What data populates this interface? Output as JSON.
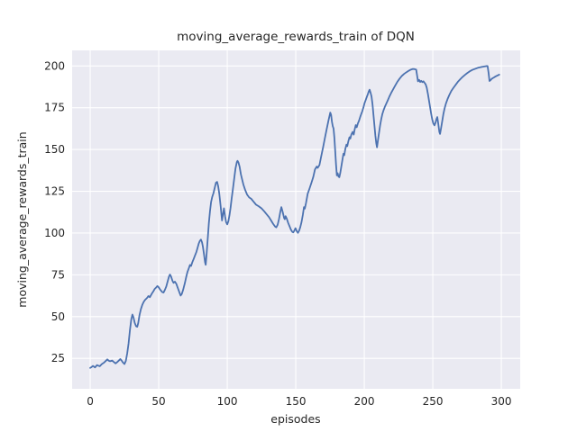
{
  "figure": {
    "background": "#ffffff",
    "axes_background": "#eaeaf2",
    "grid_color": "#ffffff",
    "text_color": "#262626",
    "line_color": "#4c72b0"
  },
  "chart_data": {
    "type": "line",
    "title": "moving_average_rewards_train of DQN",
    "xlabel": "episodes",
    "ylabel": "moving_average_rewards_train",
    "x_ticks": [
      0,
      50,
      100,
      150,
      200,
      250,
      300
    ],
    "y_ticks": [
      25,
      50,
      75,
      100,
      125,
      150,
      175,
      200
    ],
    "xlim": [
      -13.2,
      313.8
    ],
    "ylim": [
      6.8,
      209.3
    ],
    "grid": true,
    "legend": "none",
    "series": [
      {
        "name": "moving_average_rewards_train",
        "color": "#4c72b0",
        "points": [
          [
            0,
            19.3
          ],
          [
            1,
            19.8
          ],
          [
            2,
            20.5
          ],
          [
            3.5,
            19.6
          ],
          [
            5,
            21.0
          ],
          [
            6,
            20.6
          ],
          [
            7,
            20.3
          ],
          [
            8.5,
            21.6
          ],
          [
            10,
            22.4
          ],
          [
            11,
            23.2
          ],
          [
            12.5,
            24.4
          ],
          [
            13.5,
            23.6
          ],
          [
            14.5,
            23.3
          ],
          [
            16,
            23.7
          ],
          [
            17,
            23.0
          ],
          [
            18.5,
            22.0
          ],
          [
            19.5,
            22.6
          ],
          [
            20.5,
            23.4
          ],
          [
            22,
            24.6
          ],
          [
            23,
            23.6
          ],
          [
            23.8,
            22.6
          ],
          [
            25,
            21.6
          ],
          [
            26,
            23.5
          ],
          [
            27,
            28.0
          ],
          [
            28,
            34.0
          ],
          [
            29,
            42.0
          ],
          [
            30,
            48.5
          ],
          [
            30.8,
            51.2
          ],
          [
            31.5,
            49.8
          ],
          [
            32.5,
            46.2
          ],
          [
            33.5,
            44.2
          ],
          [
            34.3,
            43.9
          ],
          [
            35,
            46.0
          ],
          [
            36,
            51.0
          ],
          [
            37,
            54.5
          ],
          [
            38,
            57.0
          ],
          [
            39,
            58.8
          ],
          [
            40,
            60.0
          ],
          [
            41.5,
            61.2
          ],
          [
            42.5,
            62.3
          ],
          [
            43.5,
            61.6
          ],
          [
            45,
            63.8
          ],
          [
            46,
            65.0
          ],
          [
            47,
            66.5
          ],
          [
            48,
            67.3
          ],
          [
            49,
            68.3
          ],
          [
            50,
            67.5
          ],
          [
            51,
            66.2
          ],
          [
            52.5,
            64.7
          ],
          [
            53.5,
            64.4
          ],
          [
            54.5,
            66.0
          ],
          [
            55.5,
            68.0
          ],
          [
            56.5,
            71.0
          ],
          [
            57.5,
            74.0
          ],
          [
            58.2,
            75.2
          ],
          [
            59,
            74.0
          ],
          [
            60,
            71.5
          ],
          [
            60.8,
            70.2
          ],
          [
            61.8,
            70.9
          ],
          [
            62.8,
            69.7
          ],
          [
            63.8,
            67.4
          ],
          [
            65,
            64.7
          ],
          [
            66,
            62.6
          ],
          [
            66.8,
            63.5
          ],
          [
            67.8,
            66.0
          ],
          [
            69,
            69.8
          ],
          [
            70,
            73.5
          ],
          [
            71,
            76.8
          ],
          [
            72,
            79.0
          ],
          [
            72.8,
            80.9
          ],
          [
            73.6,
            80.3
          ],
          [
            74.5,
            82.5
          ],
          [
            75.5,
            84.5
          ],
          [
            76.5,
            86.6
          ],
          [
            77.5,
            88.7
          ],
          [
            78.3,
            91.0
          ],
          [
            79.2,
            93.7
          ],
          [
            80,
            95.3
          ],
          [
            80.8,
            96.1
          ],
          [
            81.6,
            94.5
          ],
          [
            82.3,
            91.5
          ],
          [
            83,
            87.5
          ],
          [
            83.8,
            82.5
          ],
          [
            84.3,
            81.0
          ],
          [
            85,
            88.0
          ],
          [
            85.8,
            97.0
          ],
          [
            86.6,
            106.0
          ],
          [
            87.4,
            113.0
          ],
          [
            88.2,
            118.5
          ],
          [
            89,
            121.5
          ],
          [
            90,
            124.0
          ],
          [
            91,
            127.5
          ],
          [
            91.8,
            130.2
          ],
          [
            92.6,
            130.6
          ],
          [
            93.4,
            128.0
          ],
          [
            94.2,
            123.5
          ],
          [
            95.2,
            116.0
          ],
          [
            96.2,
            107.5
          ],
          [
            97,
            111.8
          ],
          [
            97.6,
            114.8
          ],
          [
            98.4,
            110.0
          ],
          [
            99.2,
            106.5
          ],
          [
            100,
            105.2
          ],
          [
            100.8,
            107.0
          ],
          [
            101.6,
            110.5
          ],
          [
            102.4,
            115.0
          ],
          [
            103.2,
            120.5
          ],
          [
            104,
            125.5
          ],
          [
            105,
            132.0
          ],
          [
            106,
            138.5
          ],
          [
            107,
            142.5
          ],
          [
            107.5,
            143.2
          ],
          [
            108.2,
            142.2
          ],
          [
            109,
            139.8
          ],
          [
            110,
            135.0
          ],
          [
            110.8,
            132.3
          ],
          [
            111.8,
            129.0
          ],
          [
            113,
            126.0
          ],
          [
            114.5,
            123.0
          ],
          [
            116,
            121.3
          ],
          [
            117.5,
            120.5
          ],
          [
            119,
            119.0
          ],
          [
            121,
            117.0
          ],
          [
            123,
            116.0
          ],
          [
            125,
            114.8
          ],
          [
            127,
            113.0
          ],
          [
            129,
            111.0
          ],
          [
            130.5,
            109.5
          ],
          [
            132,
            107.5
          ],
          [
            133.5,
            105.5
          ],
          [
            135,
            103.8
          ],
          [
            135.8,
            103.4
          ],
          [
            136.8,
            105.0
          ],
          [
            137.8,
            108.5
          ],
          [
            138.8,
            113.0
          ],
          [
            139.5,
            115.5
          ],
          [
            140.5,
            112.5
          ],
          [
            141.5,
            109.0
          ],
          [
            142,
            108.3
          ],
          [
            142.6,
            110.1
          ],
          [
            143.5,
            108.5
          ],
          [
            144.5,
            106.0
          ],
          [
            145.5,
            104.0
          ],
          [
            146.5,
            102.0
          ],
          [
            147.5,
            100.7
          ],
          [
            148.2,
            100.4
          ],
          [
            149,
            101.5
          ],
          [
            149.8,
            102.9
          ],
          [
            150.8,
            101.0
          ],
          [
            151.6,
            100.1
          ],
          [
            152.5,
            101.5
          ],
          [
            153.3,
            103.5
          ],
          [
            154.2,
            106.5
          ],
          [
            155.2,
            111.0
          ],
          [
            156,
            115.5
          ],
          [
            156.6,
            114.6
          ],
          [
            157.5,
            118.0
          ],
          [
            158.7,
            123.5
          ],
          [
            160,
            126.5
          ],
          [
            161.5,
            130.2
          ],
          [
            162.8,
            133.6
          ],
          [
            164,
            138.0
          ],
          [
            165.3,
            139.8
          ],
          [
            166,
            139.0
          ],
          [
            167.3,
            140.7
          ],
          [
            168.6,
            146.0
          ],
          [
            170,
            151.5
          ],
          [
            171.3,
            157.0
          ],
          [
            172.6,
            162.3
          ],
          [
            174,
            167.8
          ],
          [
            175.2,
            172.1
          ],
          [
            175.8,
            170.7
          ],
          [
            176.4,
            166.7
          ],
          [
            177,
            164.0
          ],
          [
            177.6,
            162.5
          ],
          [
            178.2,
            157.0
          ],
          [
            178.8,
            149.0
          ],
          [
            179.4,
            141.0
          ],
          [
            180,
            134.5
          ],
          [
            180.6,
            135.8
          ],
          [
            181.2,
            133.8
          ],
          [
            181.8,
            133.4
          ],
          [
            182.5,
            136.0
          ],
          [
            183.2,
            139.5
          ],
          [
            184,
            143.5
          ],
          [
            184.8,
            147.5
          ],
          [
            185.4,
            146.6
          ],
          [
            186.2,
            150.5
          ],
          [
            187,
            152.9
          ],
          [
            187.6,
            152.0
          ],
          [
            188.4,
            155.0
          ],
          [
            189.2,
            157.3
          ],
          [
            189.8,
            156.5
          ],
          [
            190.6,
            159.0
          ],
          [
            191.5,
            160.5
          ],
          [
            192.3,
            158.9
          ],
          [
            193,
            162.0
          ],
          [
            193.8,
            164.6
          ],
          [
            194.5,
            163.3
          ],
          [
            195.3,
            165.5
          ],
          [
            196.2,
            167.3
          ],
          [
            197,
            169.4
          ],
          [
            197.8,
            171.2
          ],
          [
            198.6,
            173.0
          ],
          [
            199.4,
            175.2
          ],
          [
            200.2,
            177.7
          ],
          [
            201,
            179.5
          ],
          [
            201.8,
            181.3
          ],
          [
            202.6,
            183.1
          ],
          [
            203.3,
            184.8
          ],
          [
            203.9,
            185.8
          ],
          [
            204.6,
            184.0
          ],
          [
            205.3,
            181.7
          ],
          [
            206,
            177.2
          ],
          [
            206.7,
            170.9
          ],
          [
            207.4,
            164.6
          ],
          [
            208.1,
            158.3
          ],
          [
            208.8,
            153.5
          ],
          [
            209.3,
            151.3
          ],
          [
            210,
            155.6
          ],
          [
            210.8,
            160.1
          ],
          [
            211.6,
            164.6
          ],
          [
            212.4,
            168.2
          ],
          [
            213.2,
            171.2
          ],
          [
            214,
            173.3
          ],
          [
            215,
            175.5
          ],
          [
            216,
            177.3
          ],
          [
            217.2,
            179.5
          ],
          [
            218.4,
            181.8
          ],
          [
            219.6,
            183.8
          ],
          [
            221,
            185.9
          ],
          [
            222.4,
            188.0
          ],
          [
            224,
            190.3
          ],
          [
            225.7,
            192.3
          ],
          [
            227.3,
            193.9
          ],
          [
            229,
            195.2
          ],
          [
            230.7,
            196.2
          ],
          [
            232.4,
            197.1
          ],
          [
            234,
            197.8
          ],
          [
            235.5,
            198.2
          ],
          [
            236.7,
            198.1
          ],
          [
            237.9,
            197.8
          ],
          [
            238.6,
            194.0
          ],
          [
            239.2,
            190.8
          ],
          [
            240,
            191.7
          ],
          [
            240.8,
            190.4
          ],
          [
            241.6,
            191.1
          ],
          [
            242.4,
            190.3
          ],
          [
            243.2,
            190.8
          ],
          [
            244,
            189.9
          ],
          [
            244.8,
            189.0
          ],
          [
            245.6,
            187.0
          ],
          [
            246.4,
            183.5
          ],
          [
            247.2,
            179.5
          ],
          [
            248,
            175.5
          ],
          [
            248.8,
            171.5
          ],
          [
            249.6,
            168.0
          ],
          [
            250.4,
            165.6
          ],
          [
            251.2,
            164.4
          ],
          [
            252,
            166.0
          ],
          [
            252.7,
            168.3
          ],
          [
            253.3,
            169.4
          ],
          [
            254,
            165.5
          ],
          [
            254.8,
            160.5
          ],
          [
            255.3,
            159.3
          ],
          [
            256,
            162.5
          ],
          [
            256.8,
            166.5
          ],
          [
            257.7,
            171.0
          ],
          [
            258.6,
            174.5
          ],
          [
            259.6,
            177.5
          ],
          [
            260.7,
            180.0
          ],
          [
            262,
            182.5
          ],
          [
            263.5,
            185.0
          ],
          [
            265,
            186.8
          ],
          [
            266.6,
            188.6
          ],
          [
            268.3,
            190.5
          ],
          [
            270,
            192.0
          ],
          [
            271.7,
            193.4
          ],
          [
            273.4,
            194.6
          ],
          [
            275.1,
            195.7
          ],
          [
            277,
            196.8
          ],
          [
            279,
            197.7
          ],
          [
            281,
            198.3
          ],
          [
            283,
            198.9
          ],
          [
            285,
            199.3
          ],
          [
            287,
            199.6
          ],
          [
            289,
            199.9
          ],
          [
            290,
            199.9
          ],
          [
            290.7,
            196.0
          ],
          [
            291.4,
            191.0
          ],
          [
            292.2,
            191.5
          ],
          [
            293,
            192.3
          ],
          [
            294,
            192.8
          ],
          [
            295,
            193.3
          ],
          [
            296.3,
            193.9
          ],
          [
            297.5,
            194.4
          ],
          [
            298.5,
            194.8
          ]
        ]
      }
    ]
  }
}
